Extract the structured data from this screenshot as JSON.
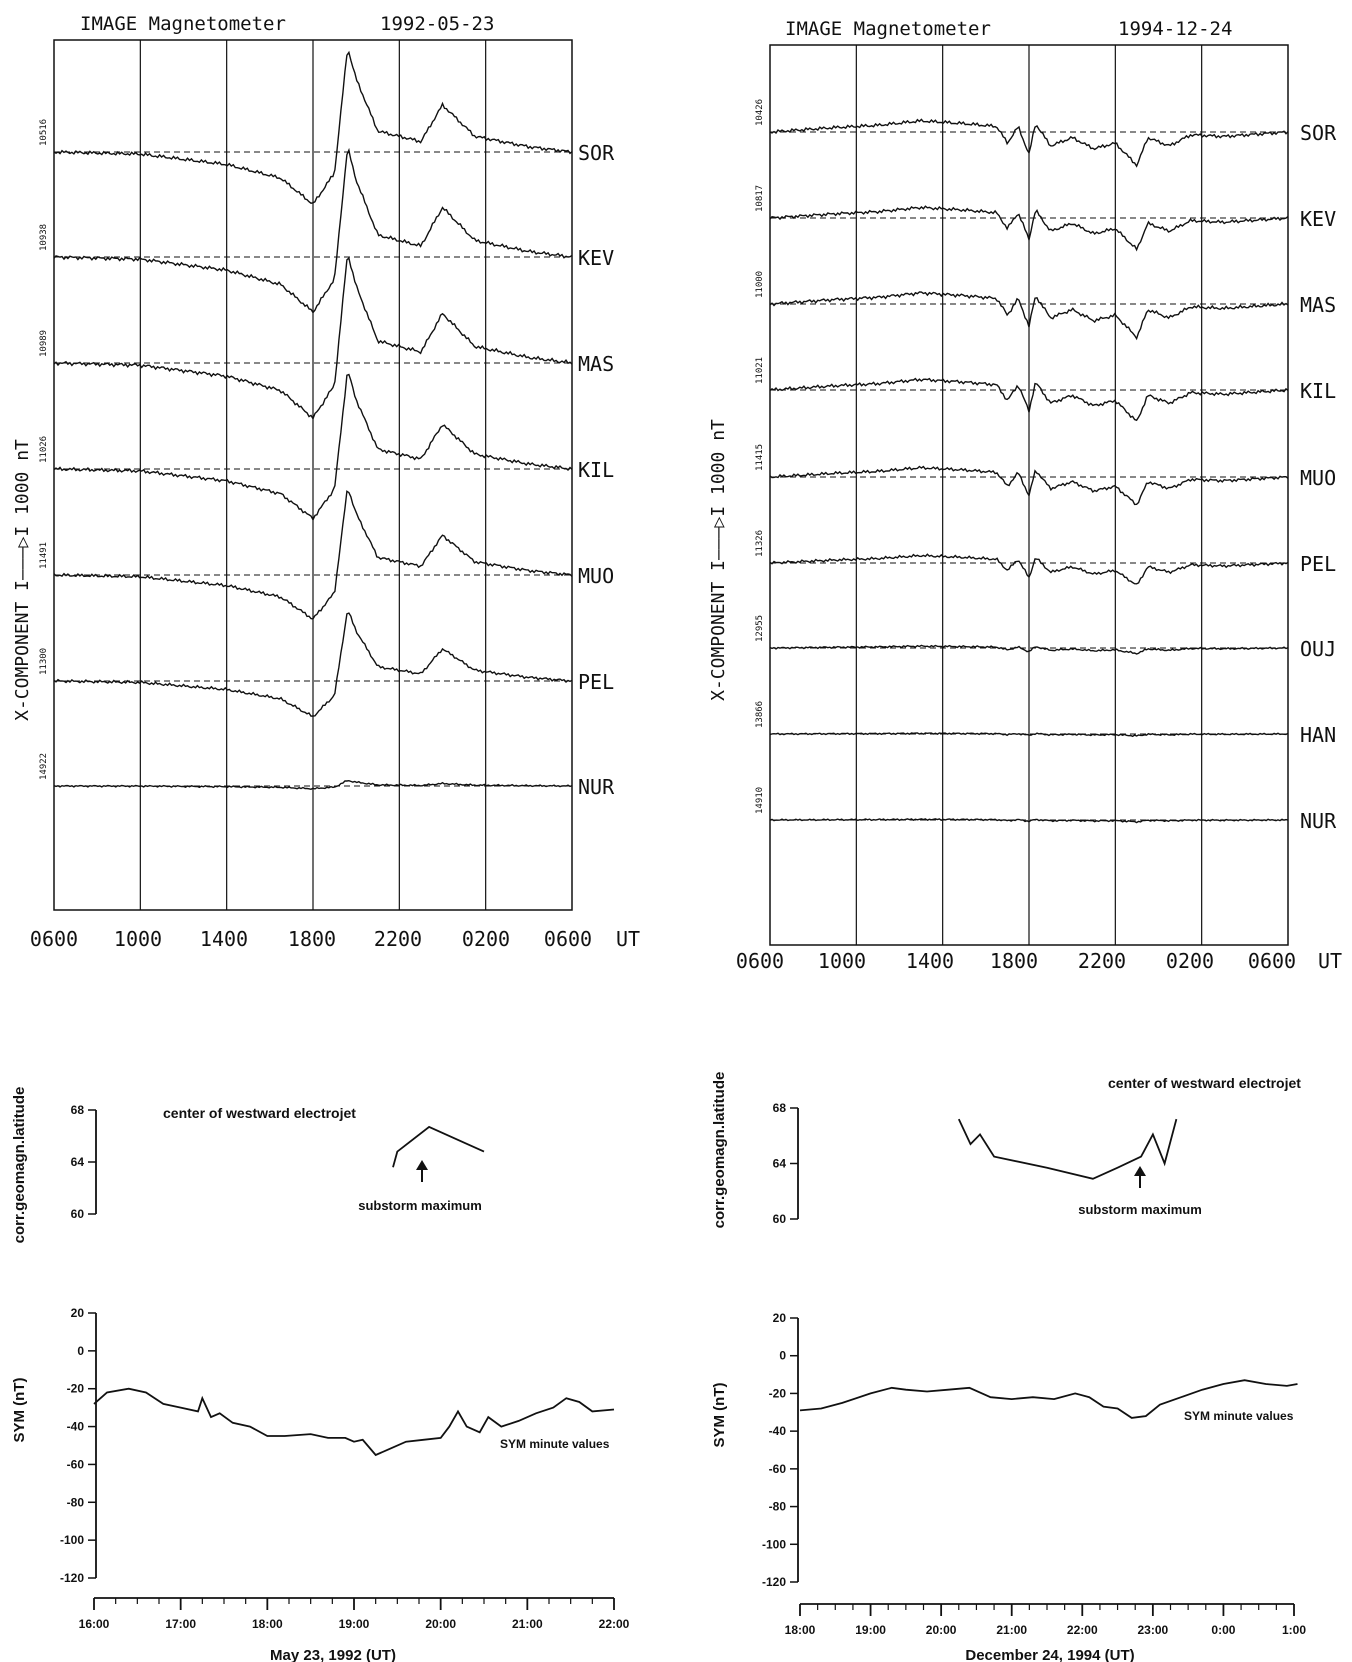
{
  "colors": {
    "ink": "#111111",
    "background": "#ffffff"
  },
  "chart_data": [
    {
      "id": "mag1",
      "type": "line",
      "title": "IMAGE Magnetometer",
      "date": "1992-05-23",
      "ylabel": "X-COMPONENT I———▷I 1000 nT",
      "x_ticks": [
        "0600",
        "1000",
        "1400",
        "1800",
        "2200",
        "0200",
        "0600"
      ],
      "x_unit": "UT",
      "stations": [
        "SOR",
        "KEV",
        "MAS",
        "KIL",
        "MUO",
        "PEL",
        "NUR"
      ],
      "baselines": [
        "10516",
        "10938",
        "10989",
        "11026",
        "11491",
        "11300",
        "14922"
      ],
      "trace_profile": {
        "t_hours_since_0600": [
          0,
          4,
          8,
          10.5,
          12,
          13,
          13.6,
          14,
          15,
          17,
          18,
          19.5,
          22,
          24
        ],
        "relative_amplitude": [
          0,
          0.02,
          0.12,
          0.25,
          0.5,
          0.2,
          -1.0,
          -0.7,
          -0.2,
          -0.1,
          -0.45,
          -0.15,
          -0.05,
          0
        ]
      },
      "station_peak_nT": [
        -0.95,
        -1.0,
        -1.0,
        -0.9,
        -0.8,
        -0.65,
        -0.05
      ]
    },
    {
      "id": "mag2",
      "type": "line",
      "title": "IMAGE Magnetometer",
      "date": "1994-12-24",
      "ylabel": "X-COMPONENT I———▷I 1000 nT",
      "x_ticks": [
        "0600",
        "1000",
        "1400",
        "1800",
        "2200",
        "0200",
        "0600"
      ],
      "x_unit": "UT",
      "stations": [
        "SOR",
        "KEV",
        "MAS",
        "KIL",
        "MUO",
        "PEL",
        "OUJ",
        "HAN",
        "NUR"
      ],
      "baselines": [
        "10426",
        "10817",
        "11000",
        "11021",
        "11415",
        "11326",
        "12955",
        "13866",
        "14910"
      ],
      "trace_profile": {
        "t_hours_since_0600": [
          0,
          3,
          5,
          7,
          9,
          10.5,
          11,
          11.5,
          12,
          12.3,
          13,
          14,
          15,
          16,
          17,
          17.5,
          18.5,
          19.5,
          21,
          24
        ],
        "relative_amplitude": [
          0,
          0.08,
          0.12,
          0.2,
          0.15,
          0.1,
          -0.2,
          0.1,
          -0.4,
          0.15,
          -0.25,
          -0.1,
          -0.3,
          -0.2,
          -0.6,
          -0.1,
          -0.25,
          -0.05,
          -0.08,
          0
        ]
      },
      "station_peak_nT": [
        0.9,
        0.85,
        0.9,
        0.85,
        0.75,
        0.6,
        0.15,
        0.05,
        0.05
      ]
    },
    {
      "id": "lat1",
      "type": "line",
      "ylabel": "corr.geomagn.latitude",
      "yticks": [
        68,
        64,
        60
      ],
      "ylim": [
        60,
        68
      ],
      "annotation": "center of westward electrojet",
      "arrow_label": "substorm maximum",
      "x": [
        "19:27",
        "19:30",
        "19:52",
        "20:30"
      ],
      "y": [
        63.6,
        64.8,
        66.7,
        64.8
      ]
    },
    {
      "id": "sym1",
      "type": "line",
      "ylabel": "SYM (nT)",
      "yticks": [
        20,
        0,
        -20,
        -40,
        -60,
        -80,
        -100,
        -120
      ],
      "ylim": [
        -120,
        20
      ],
      "xlabel": "May 23, 1992 (UT)",
      "x_ticks": [
        "16:00",
        "17:00",
        "18:00",
        "19:00",
        "20:00",
        "21:00",
        "22:00"
      ],
      "series_label": "SYM minute values",
      "x": [
        16.0,
        16.15,
        16.4,
        16.6,
        16.8,
        17.0,
        17.2,
        17.25,
        17.35,
        17.45,
        17.6,
        17.8,
        18.0,
        18.2,
        18.5,
        18.7,
        18.9,
        19.0,
        19.1,
        19.25,
        19.4,
        19.6,
        19.8,
        20.0,
        20.1,
        20.2,
        20.3,
        20.45,
        20.55,
        20.7,
        20.9,
        21.1,
        21.3,
        21.45,
        21.6,
        21.75,
        22.0
      ],
      "y": [
        -28,
        -22,
        -20,
        -22,
        -28,
        -30,
        -32,
        -25,
        -35,
        -33,
        -38,
        -40,
        -45,
        -45,
        -44,
        -46,
        -46,
        -48,
        -47,
        -55,
        -52,
        -48,
        -47,
        -46,
        -40,
        -32,
        -40,
        -43,
        -35,
        -40,
        -37,
        -33,
        -30,
        -25,
        -27,
        -32,
        -31
      ]
    },
    {
      "id": "lat2",
      "type": "line",
      "ylabel": "corr.geomagn.latitude",
      "yticks": [
        68,
        64,
        60
      ],
      "ylim": [
        60,
        68
      ],
      "annotation": "center of westward electrojet",
      "arrow_label": "substorm maximum",
      "x": [
        "20:15",
        "20:25",
        "20:33",
        "20:45",
        "21:30",
        "22:09",
        "22:30",
        "22:50",
        "23:00",
        "23:10",
        "23:20"
      ],
      "y": [
        67.2,
        65.4,
        66.1,
        64.5,
        63.7,
        62.9,
        63.7,
        64.5,
        66.1,
        64.0,
        67.2
      ]
    },
    {
      "id": "sym2",
      "type": "line",
      "ylabel": "SYM (nT)",
      "yticks": [
        20,
        0,
        -20,
        -40,
        -60,
        -80,
        -100,
        -120
      ],
      "ylim": [
        -120,
        20
      ],
      "xlabel": "December 24, 1994 (UT)",
      "x_ticks": [
        "18:00",
        "19:00",
        "20:00",
        "21:00",
        "22:00",
        "23:00",
        "0:00",
        "1:00"
      ],
      "series_label": "SYM minute values",
      "x": [
        18.0,
        18.3,
        18.6,
        19.0,
        19.3,
        19.5,
        19.8,
        20.1,
        20.4,
        20.7,
        21.0,
        21.3,
        21.6,
        21.9,
        22.1,
        22.3,
        22.5,
        22.7,
        22.9,
        23.1,
        23.4,
        23.7,
        24.0,
        24.3,
        24.6,
        24.9,
        25.05
      ],
      "y": [
        -29,
        -28,
        -25,
        -20,
        -17,
        -18,
        -19,
        -18,
        -17,
        -22,
        -23,
        -22,
        -23,
        -20,
        -22,
        -27,
        -28,
        -33,
        -32,
        -26,
        -22,
        -18,
        -15,
        -13,
        -15,
        -16,
        -15
      ]
    }
  ]
}
